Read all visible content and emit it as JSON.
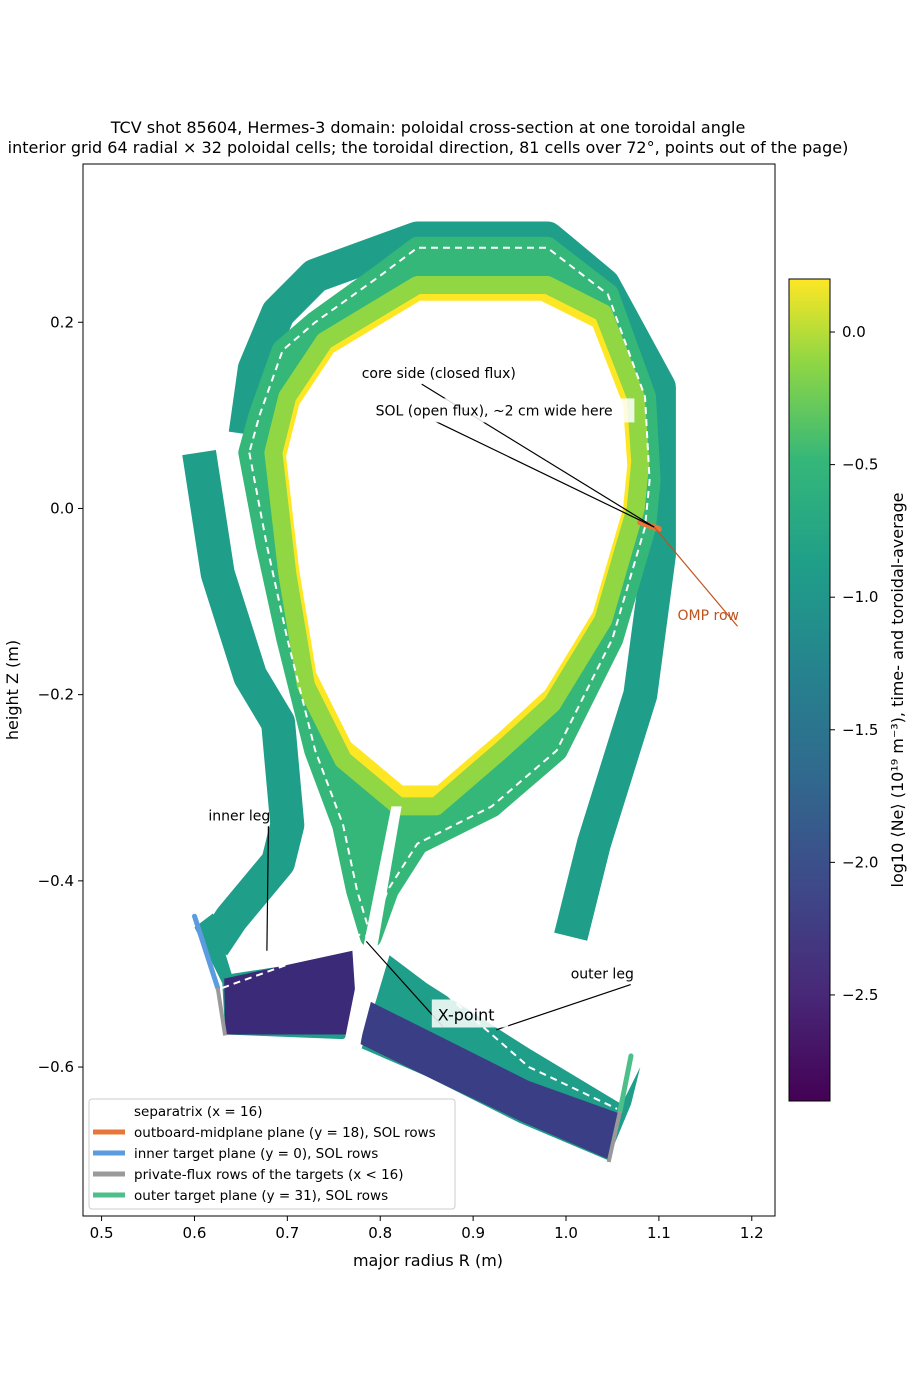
{
  "chart_data": {
    "type": "heatmap",
    "title_line1": "TCV shot 85604, Hermes-3 domain: poloidal cross-section at one toroidal angle",
    "title_line2": "interior grid 64 radial × 32 poloidal cells; the toroidal direction, 81 cells over 72°, points out of the page)",
    "xlabel": "major radius R (m)",
    "ylabel": "height Z (m)",
    "colorbar_label": "log10 ⟨Ne⟩ (10¹⁹ m⁻³), time- and toroidal-average",
    "xlim": [
      0.48,
      1.225
    ],
    "ylim": [
      -0.76,
      0.37
    ],
    "xticks": [
      0.5,
      0.6,
      0.7,
      0.8,
      0.9,
      1.0,
      1.1,
      1.2
    ],
    "xtick_labels": [
      "0.5",
      "0.6",
      "0.7",
      "0.8",
      "0.9",
      "1.0",
      "1.1",
      "1.2"
    ],
    "yticks": [
      0.2,
      0.0,
      -0.2,
      -0.4,
      -0.6
    ],
    "ytick_labels": [
      "0.2",
      "0.0",
      "−0.2",
      "−0.4",
      "−0.6"
    ],
    "colorbar": {
      "colormap": "viridis",
      "range": [
        -2.9,
        0.2
      ],
      "ticks": [
        0.0,
        -0.5,
        -1.0,
        -1.5,
        -2.0,
        -2.5
      ],
      "tick_labels": [
        "0.0",
        "−0.5",
        "−1.0",
        "−1.5",
        "−2.0",
        "−2.5"
      ]
    },
    "grid": false,
    "legend_position": "lower-left",
    "domain": {
      "separatrix": [
        [
          0.659,
          0.06
        ],
        [
          0.678,
          -0.04
        ],
        [
          0.7,
          -0.14
        ],
        [
          0.73,
          -0.26
        ],
        [
          0.76,
          -0.34
        ],
        [
          0.775,
          -0.41
        ],
        [
          0.79,
          -0.46
        ],
        [
          0.808,
          -0.41
        ],
        [
          0.84,
          -0.36
        ],
        [
          0.92,
          -0.32
        ],
        [
          0.99,
          -0.26
        ],
        [
          1.05,
          -0.14
        ],
        [
          1.085,
          -0.02
        ],
        [
          1.09,
          0.03
        ],
        [
          1.085,
          0.12
        ],
        [
          1.045,
          0.23
        ],
        [
          0.98,
          0.28
        ],
        [
          0.84,
          0.28
        ],
        [
          0.8,
          0.25
        ],
        [
          0.73,
          0.2
        ],
        [
          0.695,
          0.17
        ],
        [
          0.67,
          0.1
        ],
        [
          0.659,
          0.06
        ]
      ],
      "core_boundary": [
        [
          0.685,
          0.06
        ],
        [
          0.7,
          -0.07
        ],
        [
          0.72,
          -0.19
        ],
        [
          0.76,
          -0.27
        ],
        [
          0.82,
          -0.32
        ],
        [
          0.86,
          -0.32
        ],
        [
          0.93,
          -0.26
        ],
        [
          0.985,
          -0.21
        ],
        [
          1.04,
          -0.12
        ],
        [
          1.075,
          0.0
        ],
        [
          1.08,
          0.05
        ],
        [
          1.075,
          0.12
        ],
        [
          1.04,
          0.21
        ],
        [
          0.98,
          0.24
        ],
        [
          0.84,
          0.24
        ],
        [
          0.74,
          0.18
        ],
        [
          0.7,
          0.12
        ],
        [
          0.685,
          0.06
        ]
      ],
      "outer_wall_main": [
        [
          0.605,
          0.06
        ],
        [
          0.625,
          -0.07
        ],
        [
          0.66,
          -0.18
        ],
        [
          0.69,
          -0.23
        ],
        [
          0.7,
          -0.34
        ],
        [
          0.69,
          -0.38
        ],
        [
          0.64,
          -0.44
        ],
        [
          0.62,
          -0.47
        ]
      ],
      "outer_wall_main_right": [
        [
          1.005,
          -0.46
        ],
        [
          1.03,
          -0.36
        ],
        [
          1.08,
          -0.2
        ],
        [
          1.1,
          -0.05
        ],
        [
          1.1,
          0.13
        ],
        [
          1.04,
          0.24
        ],
        [
          0.98,
          0.29
        ],
        [
          0.84,
          0.29
        ],
        [
          0.73,
          0.25
        ],
        [
          0.69,
          0.21
        ],
        [
          0.665,
          0.15
        ],
        [
          0.655,
          0.08
        ]
      ],
      "inner_leg_polygon": [
        [
          0.62,
          -0.435
        ],
        [
          0.64,
          -0.5
        ],
        [
          0.77,
          -0.48
        ],
        [
          0.775,
          -0.56
        ],
        [
          0.76,
          -0.57
        ],
        [
          0.633,
          -0.565
        ],
        [
          0.63,
          -0.51
        ],
        [
          0.6,
          -0.45
        ]
      ],
      "outer_leg_polygon": [
        [
          0.81,
          -0.48
        ],
        [
          0.85,
          -0.51
        ],
        [
          0.96,
          -0.58
        ],
        [
          1.06,
          -0.64
        ],
        [
          1.08,
          -0.6
        ],
        [
          1.07,
          -0.64
        ],
        [
          1.045,
          -0.7
        ],
        [
          0.95,
          -0.66
        ],
        [
          0.85,
          -0.61
        ],
        [
          0.78,
          -0.58
        ]
      ]
    },
    "annotations": [
      {
        "text": "core side (closed flux)",
        "x": 0.78,
        "y": 0.14,
        "target": [
          1.095,
          -0.02
        ]
      },
      {
        "text": "SOL (open flux), ~2 cm wide here",
        "x": 0.795,
        "y": 0.1,
        "target": [
          1.095,
          -0.02
        ]
      },
      {
        "text": "OMP row",
        "x": 1.12,
        "y": -0.12,
        "target": [
          1.095,
          -0.02
        ],
        "color": "#c0531c"
      },
      {
        "text": "inner leg",
        "x": 0.615,
        "y": -0.335,
        "target": [
          0.678,
          -0.475
        ]
      },
      {
        "text": "outer leg",
        "x": 1.005,
        "y": -0.505,
        "target": [
          0.925,
          -0.56
        ]
      },
      {
        "text": "X-point",
        "x": 0.862,
        "y": -0.55,
        "target": [
          0.785,
          -0.465
        ]
      }
    ],
    "legend": [
      {
        "label": "separatrix (x = 16)",
        "style": "dashed-white"
      },
      {
        "label": "outboard-midplane plane (y = 18), SOL rows",
        "color": "#e8763a"
      },
      {
        "label": "inner target plane (y = 0), SOL rows",
        "color": "#5b9be0"
      },
      {
        "label": "private-flux rows of the targets (x < 16)",
        "color": "#9a9a9a"
      },
      {
        "label": "outer target plane (y = 31), SOL rows",
        "color": "#4cbf8a"
      }
    ],
    "highlight_colors": {
      "omp": "#e8763a",
      "inner_target": "#5b9be0",
      "private_flux": "#9a9a9a",
      "outer_target": "#4cbf8a",
      "omp_annotation": "#c0531c"
    }
  }
}
